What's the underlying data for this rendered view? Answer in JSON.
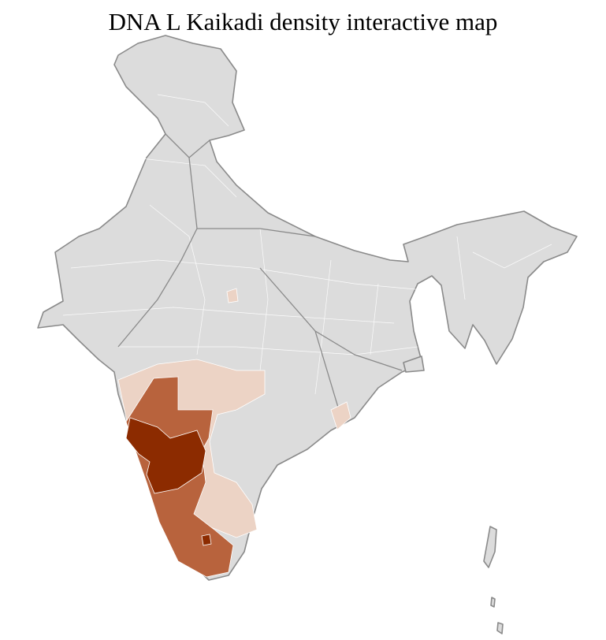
{
  "title": "DNA L Kaikadi density interactive map",
  "map": {
    "region": "India",
    "units": "districts",
    "colors": {
      "no_data": "#dcdcdc",
      "border": "#8a8a8a",
      "low": "#ecd3c5",
      "medium": "#b8633d",
      "high": "#8c2b00"
    },
    "density_levels": [
      "no_data",
      "low",
      "medium",
      "high"
    ]
  }
}
